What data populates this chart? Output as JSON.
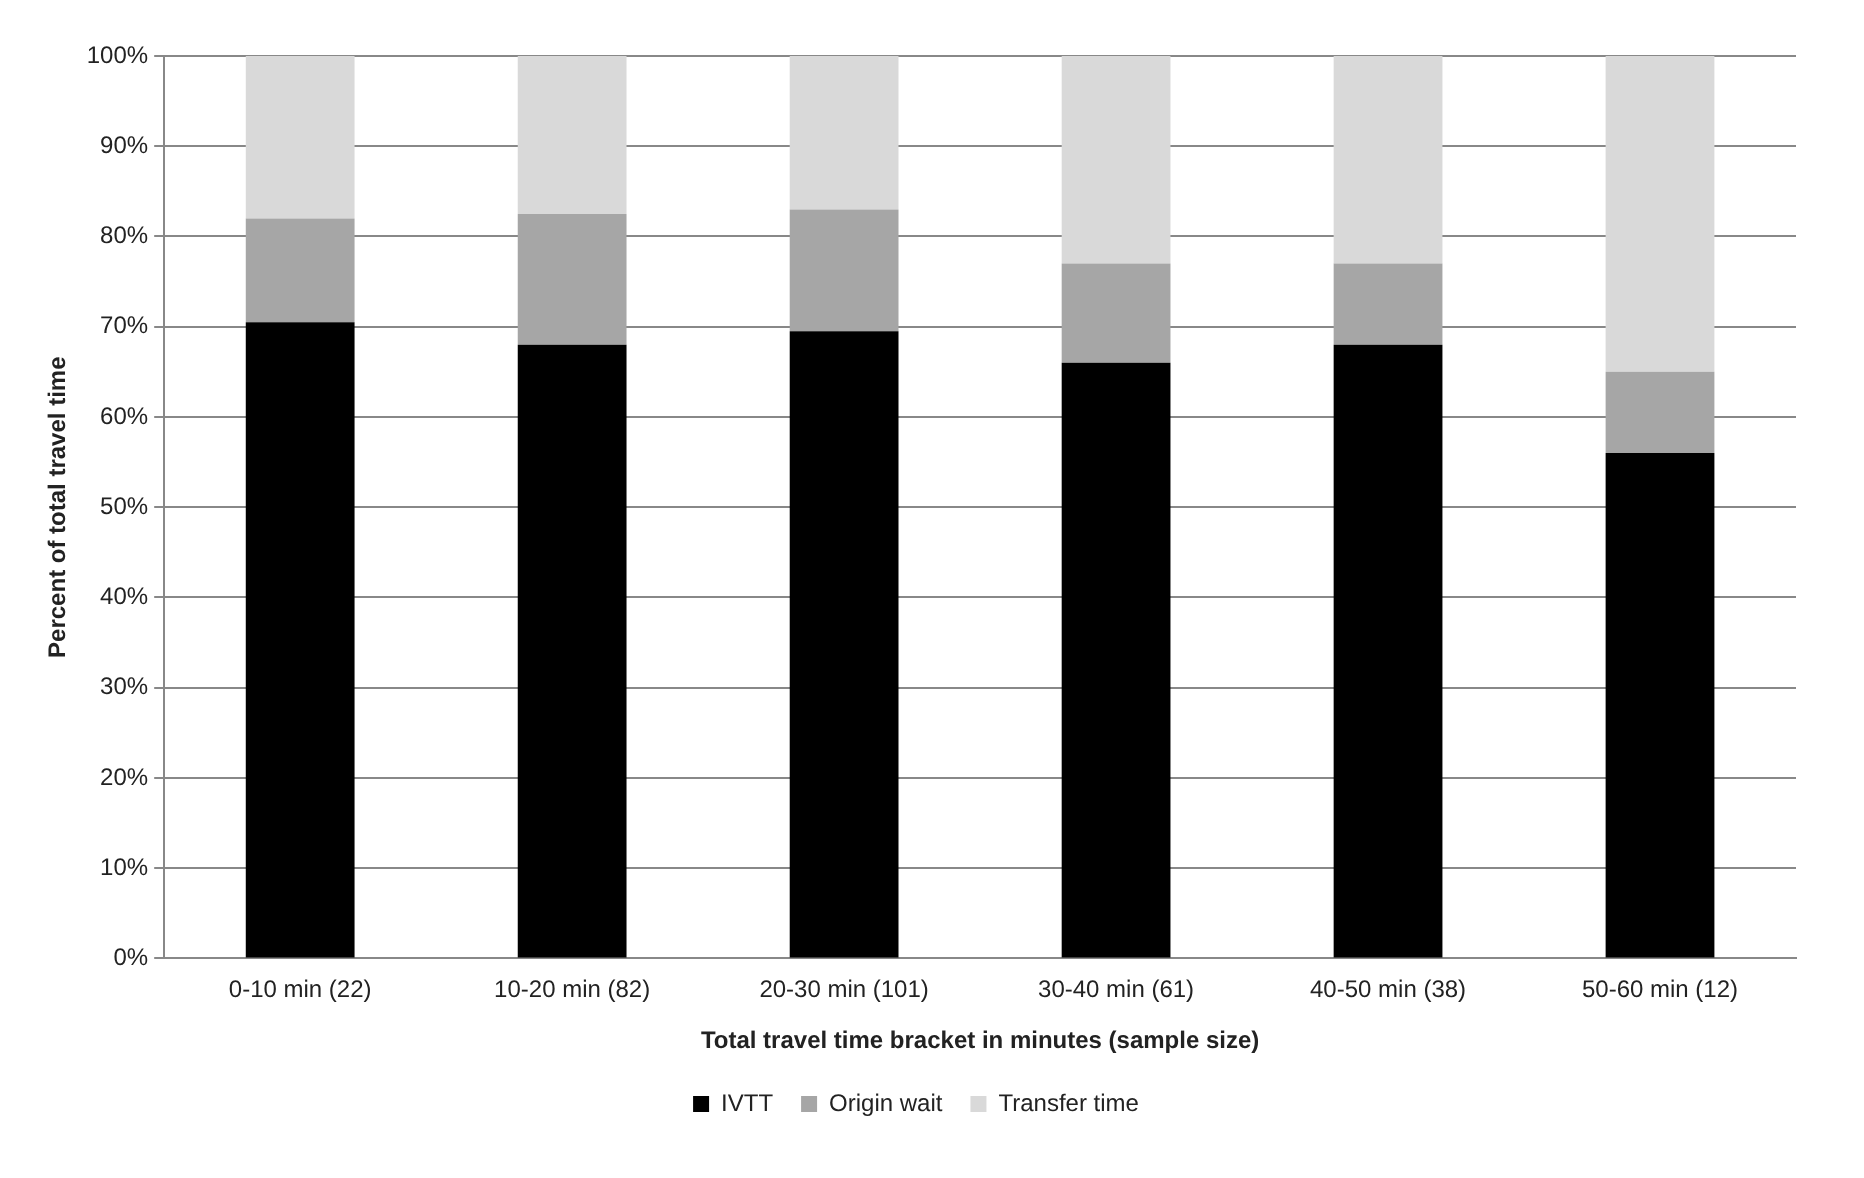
{
  "chart_data": {
    "type": "bar",
    "stacked": true,
    "xlabel": "Total travel time bracket in minutes (sample size)",
    "ylabel": "Percent of total travel time",
    "categories": [
      "0-10 min (22)",
      "10-20 min (82)",
      "20-30 min (101)",
      "30-40 min (61)",
      "40-50 min (38)",
      "50-60 min (12)"
    ],
    "series": [
      {
        "name": "IVTT",
        "color": "#000000",
        "values": [
          70.5,
          68,
          69.5,
          66,
          68,
          56
        ]
      },
      {
        "name": "Origin wait",
        "color": "#a6a6a6",
        "values": [
          11.5,
          14.5,
          13.5,
          11,
          9,
          9
        ]
      },
      {
        "name": "Transfer time",
        "color": "#d9d9d9",
        "values": [
          18,
          17.5,
          17,
          23,
          23,
          35
        ]
      }
    ],
    "ylim": [
      0,
      100
    ],
    "yticks": [
      {
        "value": 0,
        "label": "0%"
      },
      {
        "value": 10,
        "label": "10%"
      },
      {
        "value": 20,
        "label": "20%"
      },
      {
        "value": 30,
        "label": "30%"
      },
      {
        "value": 40,
        "label": "40%"
      },
      {
        "value": 50,
        "label": "50%"
      },
      {
        "value": 60,
        "label": "60%"
      },
      {
        "value": 70,
        "label": "70%"
      },
      {
        "value": 80,
        "label": "80%"
      },
      {
        "value": 90,
        "label": "90%"
      },
      {
        "value": 100,
        "label": "100%"
      }
    ],
    "grid": "y",
    "legend": "bottom"
  }
}
